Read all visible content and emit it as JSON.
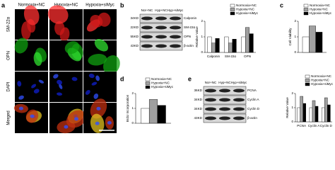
{
  "panel_labels": [
    "a",
    "b",
    "c",
    "d",
    "e"
  ],
  "panel_a": {
    "column_headers": [
      "Normoxia+NC",
      "Hypoxia+NC",
      "Hypoxia+siMyc"
    ],
    "row_labels": [
      "SM-22α",
      "OPN",
      "DAPI",
      "Merged"
    ]
  },
  "blot_b": {
    "lanes": [
      "Nor+NC",
      "Hyp+NC",
      "Hyp+siMyc"
    ],
    "sizes": [
      "34KD",
      "22KD",
      "55KD",
      "43KD"
    ],
    "proteins": [
      "Calponin",
      "SM-22α",
      "OPN",
      "β-actin"
    ]
  },
  "blot_e": {
    "lanes": [
      "Nor+NC",
      "Hyp+NC",
      "Hyp+siMyc"
    ],
    "sizes": [
      "36KD",
      "34KD",
      "34KD",
      "43KD"
    ],
    "proteins": [
      "PCNA",
      "Cyclin A",
      "Cyclin D",
      "β-actin"
    ]
  },
  "chart_data": [
    {
      "type": "bar",
      "y_label": "Relative Value",
      "categories": [
        "Calponin",
        "SM-22α",
        "OPN"
      ],
      "series": [
        {
          "name": "Normoxia+NC",
          "color": "#ffffff",
          "values": [
            1.0,
            1.0,
            1.0
          ]
        },
        {
          "name": "Hypoxia+NC",
          "color": "#a0a0a0",
          "values": [
            0.6,
            0.6,
            1.6
          ]
        },
        {
          "name": "Hypoxia+siMyc",
          "color": "#000000",
          "values": [
            0.9,
            0.85,
            1.2
          ]
        }
      ],
      "ylim": [
        0,
        2
      ],
      "yticks": [
        0,
        1,
        2
      ]
    },
    {
      "type": "bar",
      "y_label": "Cell Viability",
      "categories": [
        null
      ],
      "series": [
        {
          "name": "Normoxia+NC",
          "color": "#ffffff",
          "values": [
            1.0
          ]
        },
        {
          "name": "Hypoxia+NC",
          "color": "#a0a0a0",
          "values": [
            1.7
          ]
        },
        {
          "name": "Hypoxia+siMyc",
          "color": "#000000",
          "values": [
            1.3
          ]
        }
      ],
      "ylim": [
        0,
        2
      ],
      "yticks": [
        0,
        1,
        2
      ]
    },
    {
      "type": "bar",
      "y_label": "BrdU Incorporation",
      "categories": [
        null
      ],
      "series": [
        {
          "name": "Normoxia+NC",
          "color": "#ffffff",
          "values": [
            1.0
          ]
        },
        {
          "name": "Hypoxia+NC",
          "color": "#a0a0a0",
          "values": [
            1.6
          ]
        },
        {
          "name": "Hypoxia+siMyc",
          "color": "#000000",
          "values": [
            1.2
          ]
        }
      ],
      "ylim": [
        0,
        2
      ],
      "yticks": [
        0,
        1,
        2
      ]
    },
    {
      "type": "bar",
      "y_label": "Relative Value",
      "categories": [
        "PCNA",
        "Cyclin A",
        "Cyclin D"
      ],
      "series": [
        {
          "name": "Normoxia+NC",
          "color": "#ffffff",
          "values": [
            1.0,
            1.0,
            1.0
          ]
        },
        {
          "name": "Hypoxia+NC",
          "color": "#a0a0a0",
          "values": [
            1.8,
            1.5,
            1.7
          ]
        },
        {
          "name": "Hypoxia+siMyc",
          "color": "#000000",
          "values": [
            1.3,
            1.1,
            1.2
          ]
        }
      ],
      "ylim": [
        0,
        2
      ],
      "yticks": [
        0,
        1,
        2
      ]
    }
  ]
}
